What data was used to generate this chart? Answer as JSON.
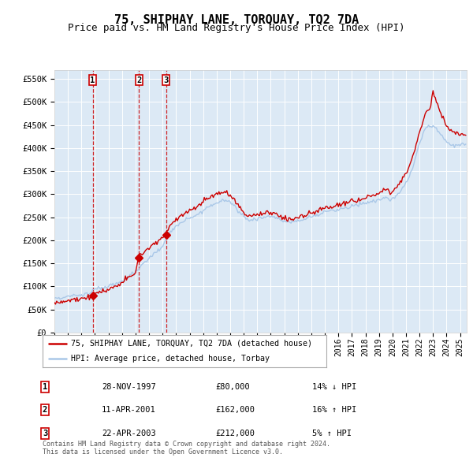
{
  "title": "75, SHIPHAY LANE, TORQUAY, TQ2 7DA",
  "subtitle": "Price paid vs. HM Land Registry's House Price Index (HPI)",
  "title_fontsize": 11,
  "subtitle_fontsize": 9,
  "plot_bg_color": "#dce9f5",
  "fig_bg_color": "#ffffff",
  "hpi_line_color": "#aac8e8",
  "price_line_color": "#cc0000",
  "sale_marker_color": "#cc0000",
  "vline_color": "#cc0000",
  "legend_label_red": "75, SHIPHAY LANE, TORQUAY, TQ2 7DA (detached house)",
  "legend_label_blue": "HPI: Average price, detached house, Torbay",
  "sale_labels": [
    "1",
    "2",
    "3"
  ],
  "sale_info": [
    [
      "28-NOV-1997",
      "£80,000",
      "14% ↓ HPI"
    ],
    [
      "11-APR-2001",
      "£162,000",
      "16% ↑ HPI"
    ],
    [
      "22-APR-2003",
      "£212,000",
      "5% ↑ HPI"
    ]
  ],
  "sale_prices": [
    80000,
    162000,
    212000
  ],
  "sale_decimal_years": [
    1997.833,
    2001.25,
    2003.25
  ],
  "vline_years": [
    1997.833,
    2001.25,
    2003.25
  ],
  "footer": "Contains HM Land Registry data © Crown copyright and database right 2024.\nThis data is licensed under the Open Government Licence v3.0.",
  "ylim": [
    0,
    570000
  ],
  "yticks": [
    0,
    50000,
    100000,
    150000,
    200000,
    250000,
    300000,
    350000,
    400000,
    450000,
    500000,
    550000
  ],
  "ytick_labels": [
    "£0",
    "£50K",
    "£100K",
    "£150K",
    "£200K",
    "£250K",
    "£300K",
    "£350K",
    "£400K",
    "£450K",
    "£500K",
    "£550K"
  ],
  "xlim": [
    1995.0,
    2025.5
  ]
}
